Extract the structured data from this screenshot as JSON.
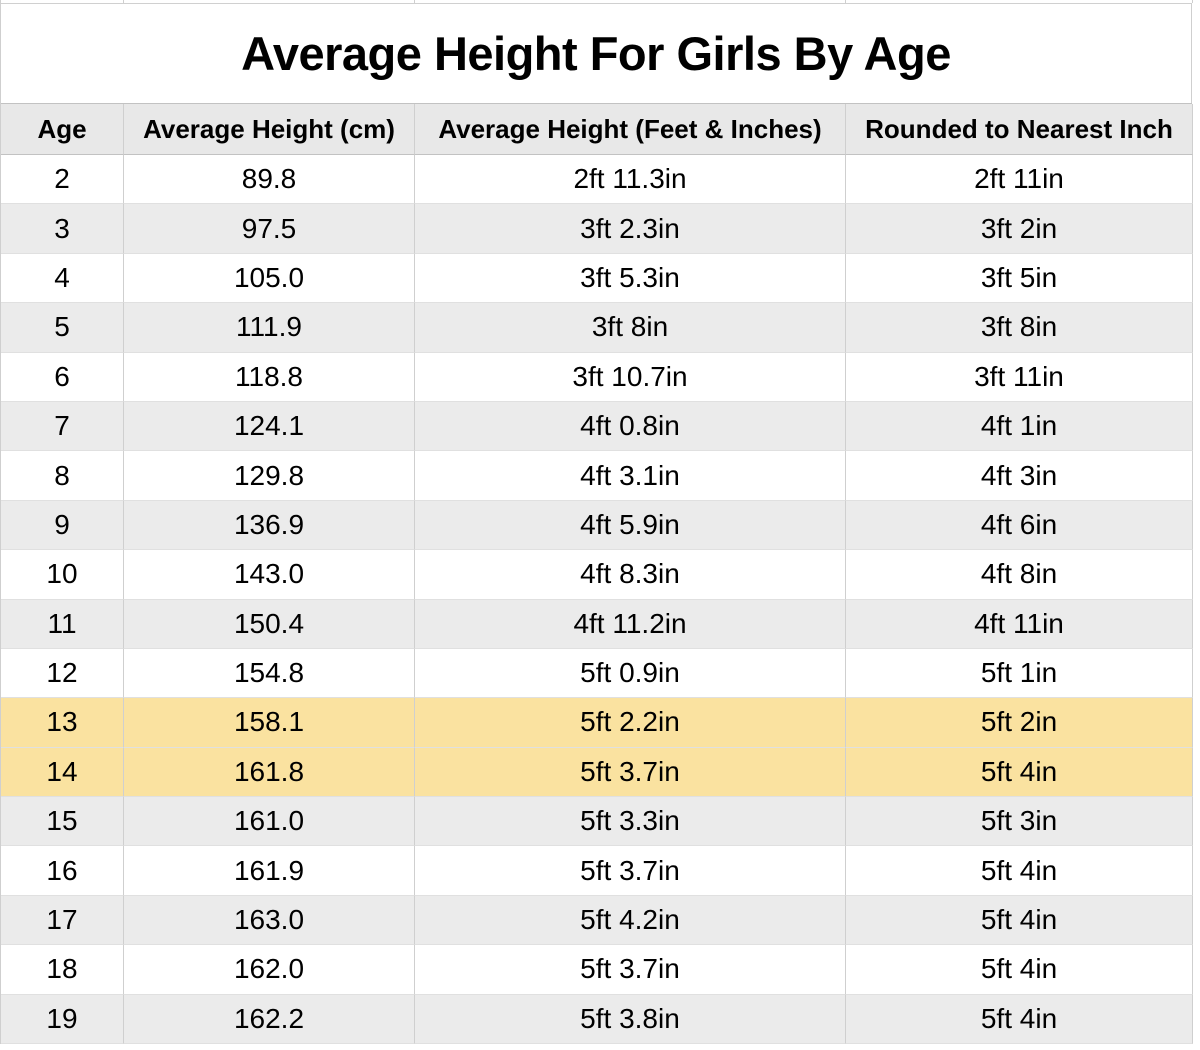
{
  "title": "Average Height For Girls By Age",
  "chart_data": {
    "type": "table",
    "title": "Average Height For Girls By Age",
    "columns": [
      {
        "key": "age",
        "label": "Age"
      },
      {
        "key": "cm",
        "label": "Average Height (cm)"
      },
      {
        "key": "ftin",
        "label": "Average Height (Feet & Inches)"
      },
      {
        "key": "rounded",
        "label": "Rounded to Nearest Inch"
      }
    ],
    "rows": [
      {
        "age": "2",
        "cm": "89.8",
        "ftin": "2ft 11.3in",
        "rounded": "2ft 11in",
        "highlight": false
      },
      {
        "age": "3",
        "cm": "97.5",
        "ftin": "3ft 2.3in",
        "rounded": "3ft 2in",
        "highlight": false
      },
      {
        "age": "4",
        "cm": "105.0",
        "ftin": "3ft 5.3in",
        "rounded": "3ft 5in",
        "highlight": false
      },
      {
        "age": "5",
        "cm": "111.9",
        "ftin": "3ft 8in",
        "rounded": "3ft 8in",
        "highlight": false
      },
      {
        "age": "6",
        "cm": "118.8",
        "ftin": "3ft 10.7in",
        "rounded": "3ft 11in",
        "highlight": false
      },
      {
        "age": "7",
        "cm": "124.1",
        "ftin": "4ft 0.8in",
        "rounded": "4ft 1in",
        "highlight": false
      },
      {
        "age": "8",
        "cm": "129.8",
        "ftin": "4ft 3.1in",
        "rounded": "4ft 3in",
        "highlight": false
      },
      {
        "age": "9",
        "cm": "136.9",
        "ftin": "4ft 5.9in",
        "rounded": "4ft 6in",
        "highlight": false
      },
      {
        "age": "10",
        "cm": "143.0",
        "ftin": "4ft 8.3in",
        "rounded": "4ft 8in",
        "highlight": false
      },
      {
        "age": "11",
        "cm": "150.4",
        "ftin": "4ft 11.2in",
        "rounded": "4ft 11in",
        "highlight": false
      },
      {
        "age": "12",
        "cm": "154.8",
        "ftin": "5ft 0.9in",
        "rounded": "5ft 1in",
        "highlight": false
      },
      {
        "age": "13",
        "cm": "158.1",
        "ftin": "5ft 2.2in",
        "rounded": "5ft 2in",
        "highlight": true
      },
      {
        "age": "14",
        "cm": "161.8",
        "ftin": "5ft 3.7in",
        "rounded": "5ft 4in",
        "highlight": true
      },
      {
        "age": "15",
        "cm": "161.0",
        "ftin": "5ft 3.3in",
        "rounded": "5ft 3in",
        "highlight": false
      },
      {
        "age": "16",
        "cm": "161.9",
        "ftin": "5ft 3.7in",
        "rounded": "5ft 4in",
        "highlight": false
      },
      {
        "age": "17",
        "cm": "163.0",
        "ftin": "5ft 4.2in",
        "rounded": "5ft 4in",
        "highlight": false
      },
      {
        "age": "18",
        "cm": "162.0",
        "ftin": "5ft 3.7in",
        "rounded": "5ft 4in",
        "highlight": false
      },
      {
        "age": "19",
        "cm": "162.2",
        "ftin": "5ft 3.8in",
        "rounded": "5ft 4in",
        "highlight": false
      }
    ]
  },
  "colors": {
    "highlight_row": "#fae2a0",
    "stripe_row": "#ebebeb",
    "header_bg": "#e8e8e8",
    "grid_line_vertical": "#cfcfcf",
    "grid_line_horizontal": "#e0e0e0",
    "header_line": "#c2c2c2",
    "text": "#000000",
    "background": "#ffffff"
  }
}
